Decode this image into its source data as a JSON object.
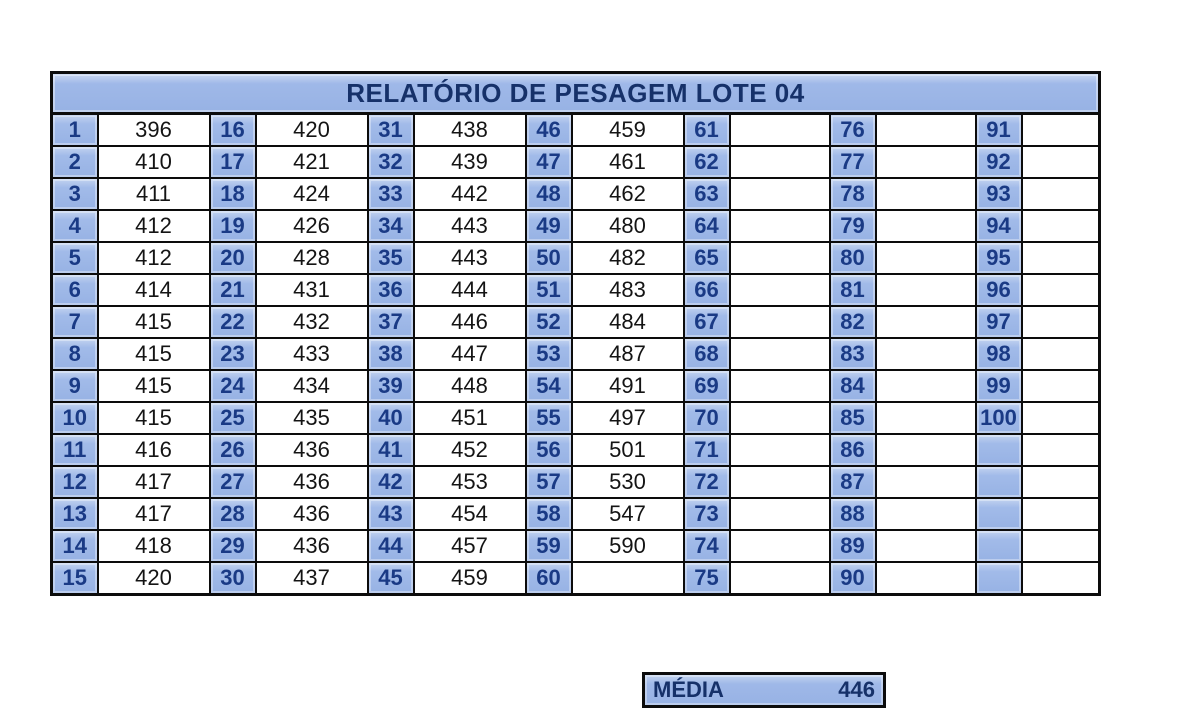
{
  "title": "RELATÓRIO DE PESAGEM LOTE 04",
  "media": {
    "label": "MÉDIA",
    "value": "446"
  },
  "colors": {
    "cell_blue": "#9db7e7",
    "navy_text": "#1a3a85",
    "title_navy": "#163169",
    "grid_black": "#0c0c0c",
    "value_black": "#141414",
    "page_bg": "#ffffff"
  },
  "groups": [
    {
      "numbers": [
        "1",
        "2",
        "3",
        "4",
        "5",
        "6",
        "7",
        "8",
        "9",
        "10",
        "11",
        "12",
        "13",
        "14",
        "15"
      ],
      "values": [
        "396",
        "410",
        "411",
        "412",
        "412",
        "414",
        "415",
        "415",
        "415",
        "415",
        "416",
        "417",
        "417",
        "418",
        "420"
      ]
    },
    {
      "numbers": [
        "16",
        "17",
        "18",
        "19",
        "20",
        "21",
        "22",
        "23",
        "24",
        "25",
        "26",
        "27",
        "28",
        "29",
        "30"
      ],
      "values": [
        "420",
        "421",
        "424",
        "426",
        "428",
        "431",
        "432",
        "433",
        "434",
        "435",
        "436",
        "436",
        "436",
        "436",
        "437"
      ]
    },
    {
      "numbers": [
        "31",
        "32",
        "33",
        "34",
        "35",
        "36",
        "37",
        "38",
        "39",
        "40",
        "41",
        "42",
        "43",
        "44",
        "45"
      ],
      "values": [
        "438",
        "439",
        "442",
        "443",
        "443",
        "444",
        "446",
        "447",
        "448",
        "451",
        "452",
        "453",
        "454",
        "457",
        "459"
      ]
    },
    {
      "numbers": [
        "46",
        "47",
        "48",
        "49",
        "50",
        "51",
        "52",
        "53",
        "54",
        "55",
        "56",
        "57",
        "58",
        "59",
        "60"
      ],
      "values": [
        "459",
        "461",
        "462",
        "480",
        "482",
        "483",
        "484",
        "487",
        "491",
        "497",
        "501",
        "530",
        "547",
        "590",
        ""
      ]
    },
    {
      "numbers": [
        "61",
        "62",
        "63",
        "64",
        "65",
        "66",
        "67",
        "68",
        "69",
        "70",
        "71",
        "72",
        "73",
        "74",
        "75"
      ],
      "values": [
        "",
        "",
        "",
        "",
        "",
        "",
        "",
        "",
        "",
        "",
        "",
        "",
        "",
        "",
        ""
      ]
    },
    {
      "numbers": [
        "76",
        "77",
        "78",
        "79",
        "80",
        "81",
        "82",
        "83",
        "84",
        "85",
        "86",
        "87",
        "88",
        "89",
        "90"
      ],
      "values": [
        "",
        "",
        "",
        "",
        "",
        "",
        "",
        "",
        "",
        "",
        "",
        "",
        "",
        "",
        ""
      ]
    },
    {
      "numbers": [
        "91",
        "92",
        "93",
        "94",
        "95",
        "96",
        "97",
        "98",
        "99",
        "100",
        "",
        "",
        "",
        "",
        ""
      ],
      "values": [
        "",
        "",
        "",
        "",
        "",
        "",
        "",
        "",
        "",
        "",
        "",
        "",
        "",
        "",
        ""
      ]
    }
  ]
}
